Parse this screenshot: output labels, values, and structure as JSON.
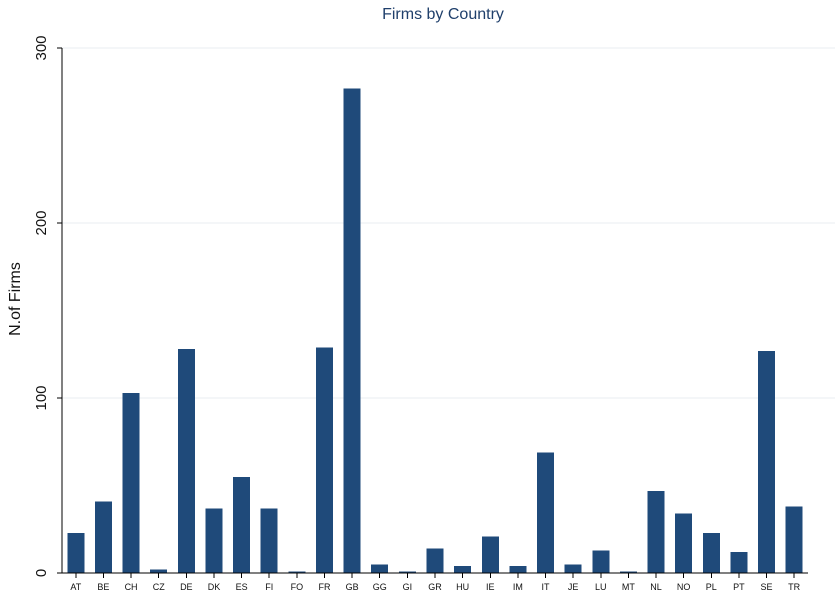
{
  "colors": {
    "bar": "#1f4a7a",
    "title": "#1f3f6b",
    "grid": "#e9edf2",
    "axis": "#000000",
    "background": "#ffffff"
  },
  "chart_data": {
    "type": "bar",
    "title": "Firms by Country",
    "xlabel": "",
    "ylabel": "N.of Firms",
    "categories": [
      "AT",
      "BE",
      "CH",
      "CZ",
      "DE",
      "DK",
      "ES",
      "FI",
      "FO",
      "FR",
      "GB",
      "GG",
      "GI",
      "GR",
      "HU",
      "IE",
      "IM",
      "IT",
      "JE",
      "LU",
      "MT",
      "NL",
      "NO",
      "PL",
      "PT",
      "SE",
      "TR"
    ],
    "values": [
      23,
      41,
      103,
      2,
      128,
      37,
      55,
      37,
      1,
      129,
      277,
      5,
      1,
      14,
      4,
      21,
      4,
      69,
      5,
      13,
      1,
      47,
      34,
      23,
      12,
      127,
      38
    ],
    "y_ticks": [
      0,
      100,
      200,
      300
    ],
    "ylim": [
      0,
      300
    ],
    "grid": true,
    "legend": "none"
  }
}
